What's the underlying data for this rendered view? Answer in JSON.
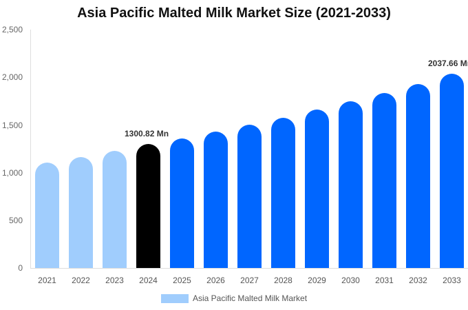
{
  "title": "Asia Pacific Malted Milk Market Size (2021-2033)",
  "y_ticks": [
    "2,500",
    "2,000",
    "1,500",
    "1,000",
    "500",
    "0"
  ],
  "legend": {
    "label": "Asia Pacific Malted Milk Market",
    "color": "#a0cdfd"
  },
  "colors": {
    "historical": "#a0cdfd",
    "base_year": "#000000",
    "forecast": "#0066ff"
  },
  "data_labels": {
    "y2024": "1300.82 Mn",
    "y2033": "2037.66 Mn"
  },
  "chart_data": {
    "type": "bar",
    "title": "Asia Pacific Malted Milk Market Size (2021-2033)",
    "xlabel": "",
    "ylabel": "",
    "ylim": [
      0,
      2500
    ],
    "y_ticks": [
      0,
      500,
      1000,
      1500,
      2000,
      2500
    ],
    "grid": false,
    "legend_position": "bottom",
    "categories": [
      "2021",
      "2022",
      "2023",
      "2024",
      "2025",
      "2026",
      "2027",
      "2028",
      "2029",
      "2030",
      "2031",
      "2032",
      "2033"
    ],
    "series": [
      {
        "name": "Asia Pacific Malted Milk Market",
        "values": [
          1105,
          1163,
          1228,
          1300.82,
          1358,
          1430,
          1503,
          1575,
          1662,
          1749,
          1835,
          1929,
          2037.66
        ],
        "bar_colors": [
          "#a0cdfd",
          "#a0cdfd",
          "#a0cdfd",
          "#000000",
          "#0066ff",
          "#0066ff",
          "#0066ff",
          "#0066ff",
          "#0066ff",
          "#0066ff",
          "#0066ff",
          "#0066ff",
          "#0066ff"
        ]
      }
    ],
    "annotations": [
      {
        "category": "2024",
        "text": "1300.82 Mn"
      },
      {
        "category": "2033",
        "text": "2037.66 Mn"
      }
    ],
    "unit": "Mn"
  }
}
